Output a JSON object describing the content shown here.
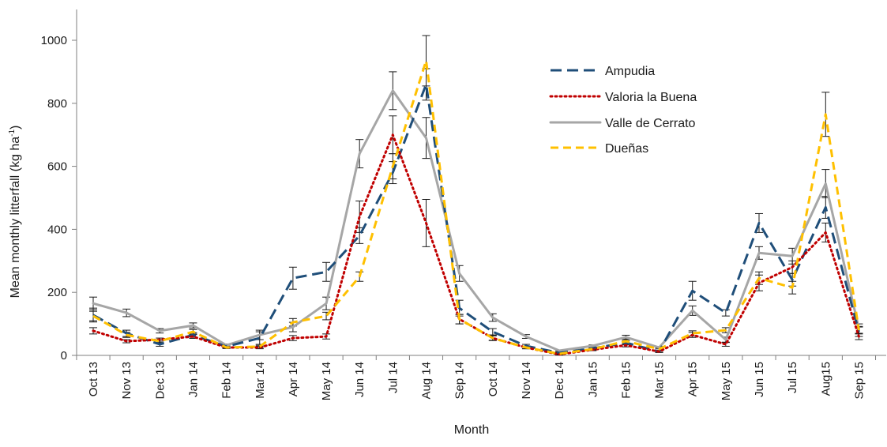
{
  "chart_data": {
    "type": "line",
    "title": "",
    "xlabel": "Month",
    "ylabel": "Mean monthly litterfall (kg ha",
    "ylabel_sup": "-1",
    "ylabel_end": ")",
    "ylim": [
      0,
      1000
    ],
    "yticks": [
      0,
      200,
      400,
      600,
      800,
      1000
    ],
    "grid": false,
    "legend_position": "top-right",
    "categories": [
      "Oct 13",
      "Nov 13",
      "Dec 13",
      "Jan 14",
      "Feb 14",
      "Mar 14",
      "Apr 14",
      "May 14",
      "Jun 14",
      "Jul 14",
      "Aug 14",
      "Sep 14",
      "Oct 14",
      "Nov 14",
      "Dec 14",
      "Jan 15",
      "Feb 15",
      "Mar 15",
      "Apr 15",
      "May 15",
      "Jun 15",
      "Jul 15",
      "Aug15",
      "Sep 15"
    ],
    "series": [
      {
        "name": "Ampudia",
        "color": "#1f4e79",
        "style": "long-dash",
        "values": [
          128,
          70,
          35,
          65,
          28,
          55,
          245,
          265,
          380,
          580,
          860,
          150,
          75,
          30,
          8,
          22,
          40,
          12,
          205,
          135,
          420,
          240,
          470,
          75
        ],
        "errors": [
          22,
          10,
          6,
          7,
          4,
          20,
          35,
          30,
          25,
          35,
          50,
          25,
          10,
          5,
          2,
          3,
          6,
          3,
          30,
          10,
          30,
          20,
          35,
          15
        ]
      },
      {
        "name": "Valoria la Buena",
        "color": "#c00000",
        "style": "dotted",
        "values": [
          78,
          45,
          50,
          60,
          25,
          25,
          55,
          60,
          440,
          700,
          420,
          115,
          55,
          25,
          3,
          18,
          32,
          12,
          65,
          35,
          230,
          280,
          390,
          60
        ],
        "errors": [
          10,
          5,
          5,
          6,
          3,
          4,
          8,
          8,
          50,
          60,
          75,
          15,
          8,
          4,
          2,
          3,
          5,
          2,
          8,
          6,
          25,
          20,
          30,
          10
        ]
      },
      {
        "name": "Valle de Cerrato",
        "color": "#a6a6a6",
        "style": "solid",
        "values": [
          165,
          135,
          78,
          95,
          32,
          65,
          90,
          165,
          640,
          840,
          690,
          260,
          120,
          60,
          15,
          30,
          58,
          25,
          142,
          50,
          325,
          315,
          545,
          85
        ],
        "errors": [
          20,
          12,
          7,
          8,
          4,
          15,
          15,
          20,
          45,
          60,
          65,
          25,
          12,
          6,
          2,
          3,
          6,
          3,
          15,
          8,
          20,
          25,
          45,
          15
        ]
      },
      {
        "name": "Dueñas",
        "color": "#ffc000",
        "style": "short-dash",
        "values": [
          125,
          65,
          45,
          75,
          25,
          28,
          105,
          125,
          250,
          600,
          935,
          115,
          55,
          25,
          5,
          20,
          45,
          20,
          70,
          80,
          245,
          215,
          765,
          80
        ],
        "errors": [
          15,
          8,
          5,
          7,
          3,
          4,
          12,
          12,
          15,
          40,
          80,
          15,
          7,
          4,
          2,
          3,
          5,
          3,
          8,
          8,
          20,
          20,
          70,
          12
        ]
      }
    ]
  }
}
